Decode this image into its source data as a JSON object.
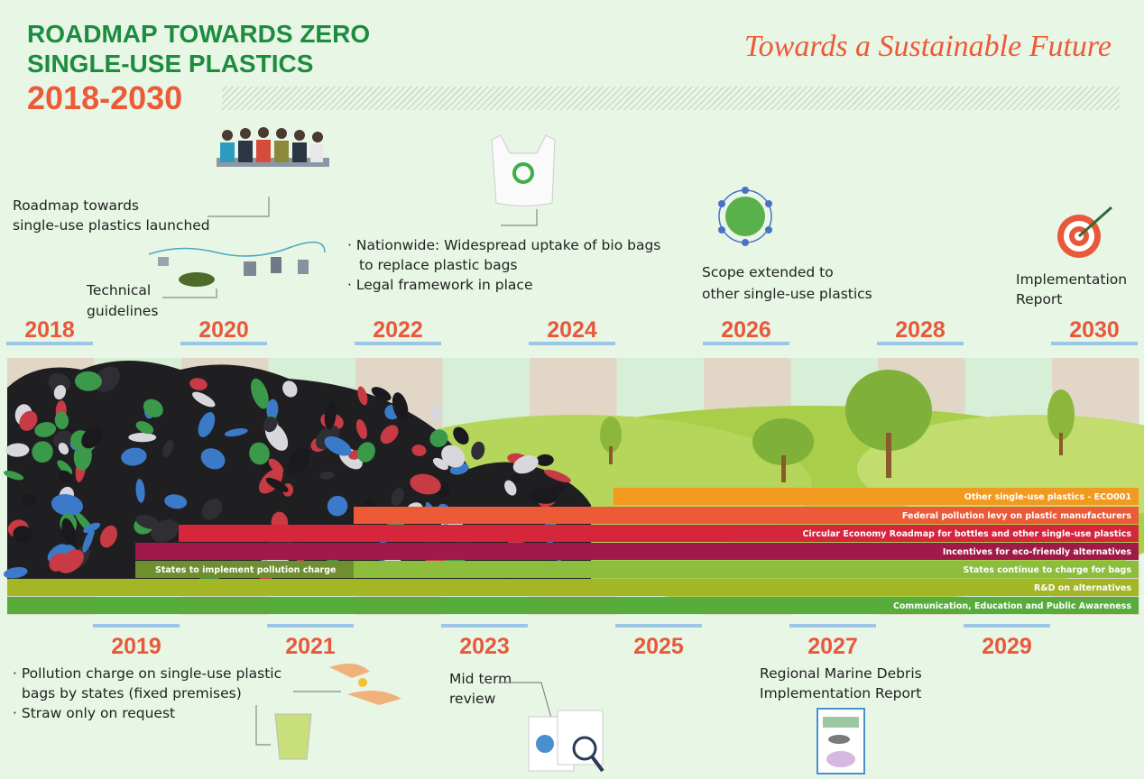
{
  "header": {
    "title_lines": [
      "ROADMAP TOWARDS ZERO",
      "SINGLE-USE PLASTICS"
    ],
    "period": "2018-2030",
    "tagline": "Towards a Sustainable Future"
  },
  "timeline": {
    "top_years": [
      "2018",
      "2020",
      "2022",
      "2024",
      "2026",
      "2028",
      "2030"
    ],
    "bottom_years": [
      "2019",
      "2021",
      "2023",
      "2025",
      "2027",
      "2029"
    ]
  },
  "milestones": [
    {
      "lines": [
        "Roadmap towards",
        "single-use plastics launched"
      ]
    },
    {
      "lines": [
        "Technical",
        "guidelines"
      ]
    },
    {
      "lines": [
        "· Nationwide: Widespread uptake of bio bags",
        "to replace plastic bags",
        "· Legal framework in place"
      ]
    },
    {
      "lines": [
        "Scope extended to",
        "other single-use plastics"
      ]
    },
    {
      "lines": [
        "Implementation",
        "Report"
      ]
    },
    {
      "lines": [
        "· Pollution charge on single-use plastic",
        "bags by states (fixed premises)",
        "· Straw only on request"
      ]
    },
    {
      "lines": [
        "Mid term",
        "review"
      ]
    },
    {
      "lines": [
        "Regional Marine Debris",
        "Implementation Report"
      ]
    }
  ],
  "initiatives": [
    "Other single-use plastics - ECO001",
    "Federal pollution levy on plastic manufacturers",
    "Circular Economy Roadmap for bottles and other single-use plastics",
    "Incentives for eco-friendly alternatives",
    "States to implement pollution charge",
    "States continue to charge for bags",
    "R&D on alternatives",
    "Communication, Education and Public Awareness"
  ]
}
